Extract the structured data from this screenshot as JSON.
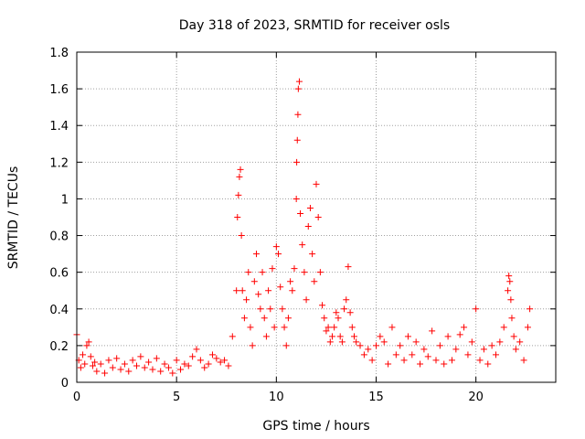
{
  "chart_data": {
    "type": "scatter",
    "title": "Day 318 of 2023, SRMTID for receiver osls",
    "xlabel": "GPS time / hours",
    "ylabel": "SRMTID / TECUs",
    "xlim": [
      0,
      24
    ],
    "ylim": [
      0,
      1.8
    ],
    "xticks": [
      0,
      5,
      10,
      15,
      20
    ],
    "xtick_labels": [
      "0",
      "5",
      "10",
      "15",
      "20"
    ],
    "yticks": [
      0,
      0.2,
      0.4,
      0.6,
      0.8,
      1,
      1.2,
      1.4,
      1.6,
      1.8
    ],
    "ytick_labels": [
      "0",
      "0.2",
      "0.4",
      "0.6",
      "0.8",
      "1",
      "1.2",
      "1.4",
      "1.6",
      "1.8"
    ],
    "grid": true,
    "marker": "plus",
    "color": "#ff0000",
    "series": [
      {
        "name": "SRMTID",
        "x": [
          0.0,
          0.1,
          0.2,
          0.3,
          0.4,
          0.5,
          0.6,
          0.7,
          0.8,
          0.9,
          1.0,
          1.2,
          1.4,
          1.6,
          1.8,
          2.0,
          2.2,
          2.4,
          2.6,
          2.8,
          3.0,
          3.2,
          3.4,
          3.6,
          3.8,
          4.0,
          4.2,
          4.4,
          4.6,
          4.8,
          5.0,
          5.2,
          5.4,
          5.6,
          5.8,
          6.0,
          6.2,
          6.4,
          6.6,
          6.8,
          7.0,
          7.2,
          7.4,
          7.6,
          7.8,
          8.0,
          8.05,
          8.1,
          8.15,
          8.2,
          8.25,
          8.3,
          8.4,
          8.5,
          8.6,
          8.7,
          8.8,
          8.9,
          9.0,
          9.1,
          9.2,
          9.3,
          9.4,
          9.5,
          9.6,
          9.7,
          9.8,
          9.9,
          10.0,
          10.1,
          10.2,
          10.3,
          10.4,
          10.5,
          10.6,
          10.7,
          10.8,
          10.9,
          11.0,
          11.02,
          11.05,
          11.08,
          11.1,
          11.15,
          11.2,
          11.3,
          11.4,
          11.5,
          11.6,
          11.7,
          11.8,
          11.9,
          12.0,
          12.1,
          12.2,
          12.3,
          12.4,
          12.5,
          12.6,
          12.7,
          12.8,
          12.9,
          13.0,
          13.1,
          13.2,
          13.3,
          13.4,
          13.5,
          13.6,
          13.7,
          13.8,
          13.9,
          14.0,
          14.2,
          14.4,
          14.6,
          14.8,
          15.0,
          15.2,
          15.4,
          15.6,
          15.8,
          16.0,
          16.2,
          16.4,
          16.6,
          16.8,
          17.0,
          17.2,
          17.4,
          17.6,
          17.8,
          18.0,
          18.2,
          18.4,
          18.6,
          18.8,
          19.0,
          19.2,
          19.4,
          19.6,
          19.8,
          20.0,
          20.2,
          20.4,
          20.6,
          20.8,
          21.0,
          21.2,
          21.4,
          21.6,
          21.65,
          21.7,
          21.75,
          21.8,
          21.9,
          22.0,
          22.2,
          22.4,
          22.6,
          22.7
        ],
        "y": [
          0.26,
          0.12,
          0.08,
          0.15,
          0.1,
          0.2,
          0.22,
          0.14,
          0.09,
          0.11,
          0.06,
          0.1,
          0.05,
          0.12,
          0.08,
          0.13,
          0.07,
          0.1,
          0.06,
          0.12,
          0.09,
          0.14,
          0.08,
          0.11,
          0.07,
          0.13,
          0.06,
          0.1,
          0.08,
          0.05,
          0.12,
          0.07,
          0.1,
          0.09,
          0.14,
          0.18,
          0.12,
          0.08,
          0.1,
          0.15,
          0.13,
          0.11,
          0.12,
          0.09,
          0.25,
          0.5,
          0.9,
          1.02,
          1.12,
          1.16,
          0.8,
          0.5,
          0.35,
          0.45,
          0.6,
          0.3,
          0.2,
          0.55,
          0.7,
          0.48,
          0.4,
          0.6,
          0.35,
          0.25,
          0.5,
          0.4,
          0.62,
          0.3,
          0.74,
          0.7,
          0.52,
          0.4,
          0.3,
          0.2,
          0.35,
          0.55,
          0.5,
          0.62,
          1.0,
          1.2,
          1.32,
          1.46,
          1.6,
          1.64,
          0.92,
          0.75,
          0.6,
          0.45,
          0.85,
          0.95,
          0.7,
          0.55,
          1.08,
          0.9,
          0.6,
          0.42,
          0.35,
          0.28,
          0.3,
          0.22,
          0.25,
          0.3,
          0.38,
          0.35,
          0.25,
          0.22,
          0.4,
          0.45,
          0.63,
          0.38,
          0.3,
          0.25,
          0.22,
          0.2,
          0.15,
          0.18,
          0.12,
          0.2,
          0.25,
          0.22,
          0.1,
          0.3,
          0.15,
          0.2,
          0.12,
          0.25,
          0.15,
          0.22,
          0.1,
          0.18,
          0.14,
          0.28,
          0.12,
          0.2,
          0.1,
          0.25,
          0.12,
          0.18,
          0.26,
          0.3,
          0.15,
          0.22,
          0.4,
          0.12,
          0.18,
          0.1,
          0.2,
          0.15,
          0.22,
          0.3,
          0.5,
          0.58,
          0.55,
          0.45,
          0.35,
          0.25,
          0.18,
          0.22,
          0.12,
          0.3,
          0.4
        ]
      }
    ]
  }
}
